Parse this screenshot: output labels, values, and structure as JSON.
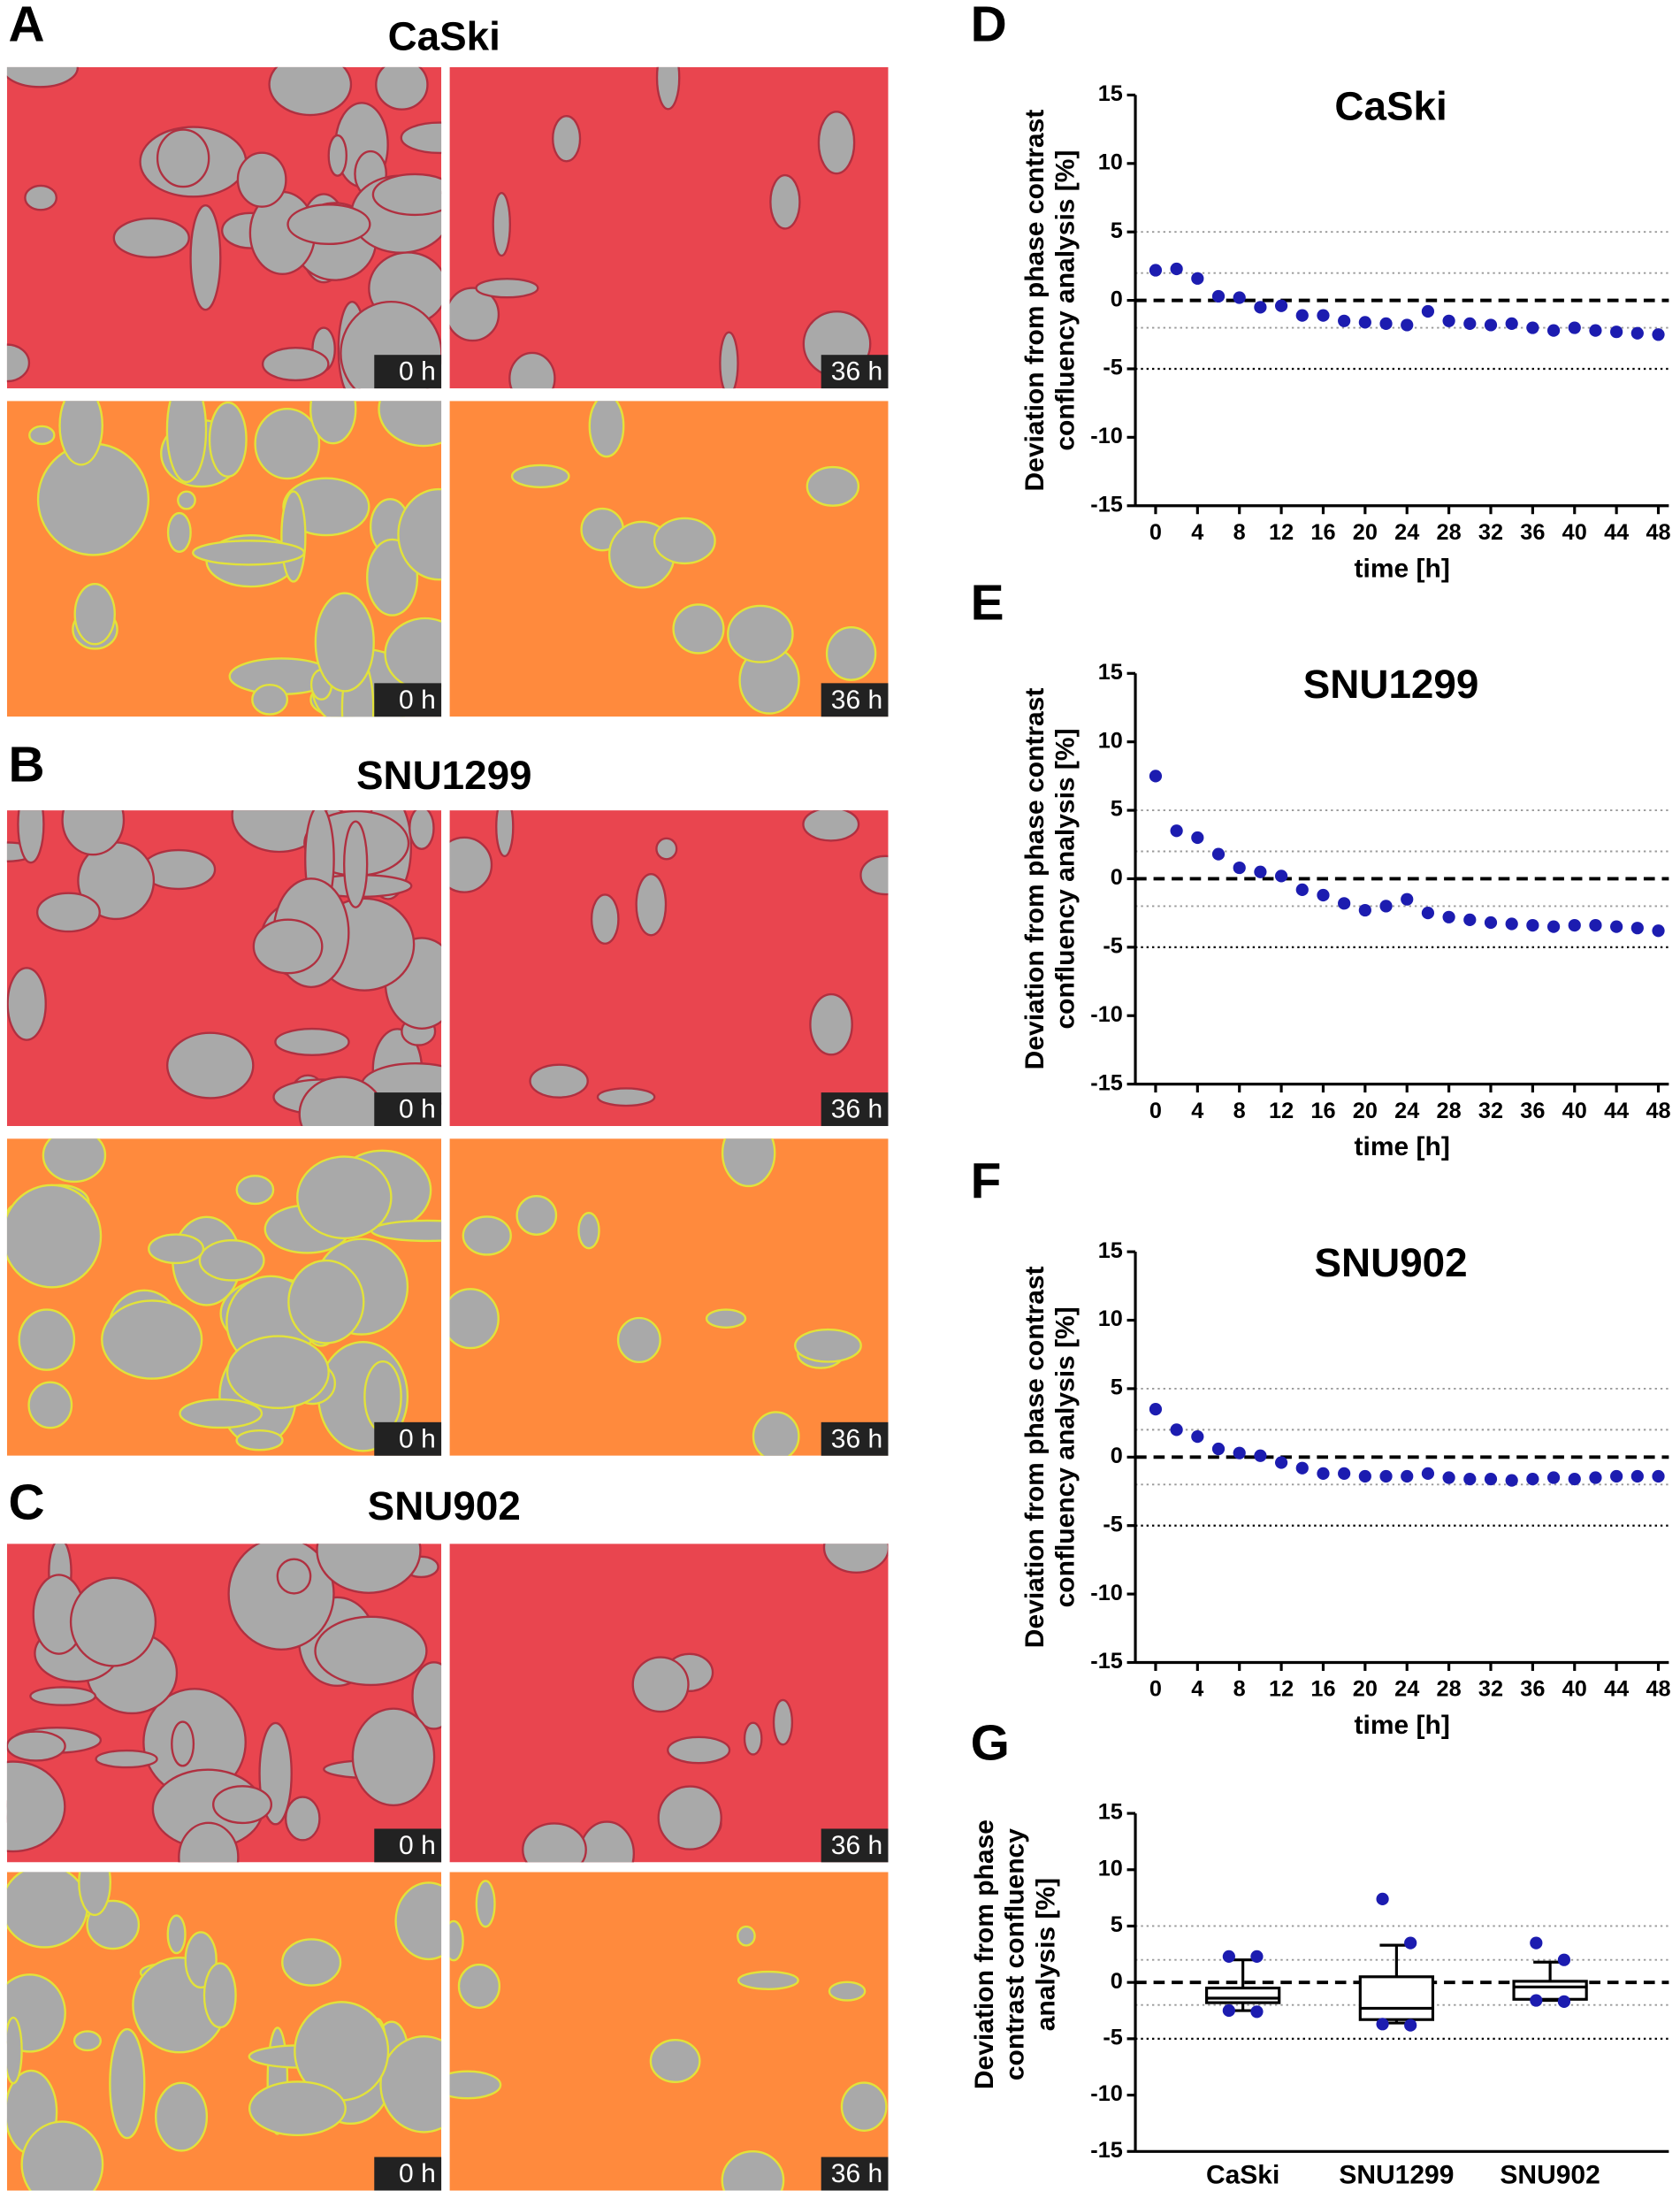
{
  "images": [
    {
      "letter": "A",
      "title": "CaSki",
      "labels": [
        "0 h",
        "36 h",
        "0 h",
        "36 h"
      ]
    },
    {
      "letter": "B",
      "title": "SNU1299",
      "labels": [
        "0 h",
        "36 h",
        "0 h",
        "36 h"
      ]
    },
    {
      "letter": "C",
      "title": "SNU902",
      "labels": [
        "0 h",
        "36 h",
        "0 h",
        "36 h"
      ]
    }
  ],
  "chart_data": [
    {
      "letter": "D",
      "type": "scatter",
      "title": "CaSki",
      "xlabel": "time [h]",
      "ylabel": [
        "Deviation from phase contrast",
        "confluency analysis [%]"
      ],
      "color": "#1c1cb0",
      "x": [
        0,
        2,
        4,
        6,
        8,
        10,
        12,
        14,
        16,
        18,
        20,
        22,
        24,
        26,
        28,
        30,
        32,
        34,
        36,
        38,
        40,
        42,
        44,
        46,
        48
      ],
      "values": [
        2.2,
        2.3,
        1.6,
        0.3,
        0.2,
        -0.5,
        -0.4,
        -1.1,
        -1.1,
        -1.5,
        -1.6,
        -1.7,
        -1.8,
        -0.8,
        -1.5,
        -1.7,
        -1.8,
        -1.7,
        -2.0,
        -2.2,
        -2.0,
        -2.2,
        -2.3,
        -2.4,
        -2.5
      ],
      "xlim": [
        -1,
        49
      ],
      "ylim": [
        -15,
        15
      ],
      "xticks": [
        0,
        4,
        8,
        12,
        16,
        20,
        24,
        28,
        32,
        36,
        40,
        44,
        48
      ],
      "yticks": [
        -15,
        -10,
        -5,
        0,
        5,
        10,
        15
      ],
      "hlines": [
        {
          "y": 5,
          "style": "gray"
        },
        {
          "y": 2,
          "style": "gray"
        },
        {
          "y": 0,
          "style": "dashed"
        },
        {
          "y": -2,
          "style": "gray"
        },
        {
          "y": -5,
          "style": "dotted"
        }
      ]
    },
    {
      "letter": "E",
      "type": "scatter",
      "title": "SNU1299",
      "xlabel": "time [h]",
      "ylabel": [
        "Deviation from phase contrast",
        "confluency analysis [%]"
      ],
      "color": "#1c1cb0",
      "x": [
        0,
        2,
        4,
        6,
        8,
        10,
        12,
        14,
        16,
        18,
        20,
        22,
        24,
        26,
        28,
        30,
        32,
        34,
        36,
        38,
        40,
        42,
        44,
        46,
        48
      ],
      "values": [
        7.5,
        3.5,
        3.0,
        1.8,
        0.8,
        0.5,
        0.2,
        -0.8,
        -1.2,
        -1.8,
        -2.3,
        -2.0,
        -1.5,
        -2.5,
        -2.8,
        -3.0,
        -3.2,
        -3.3,
        -3.4,
        -3.5,
        -3.4,
        -3.4,
        -3.5,
        -3.6,
        -3.8
      ],
      "xlim": [
        -1,
        49
      ],
      "ylim": [
        -15,
        15
      ],
      "xticks": [
        0,
        4,
        8,
        12,
        16,
        20,
        24,
        28,
        32,
        36,
        40,
        44,
        48
      ],
      "yticks": [
        -15,
        -10,
        -5,
        0,
        5,
        10,
        15
      ],
      "hlines": [
        {
          "y": 5,
          "style": "gray"
        },
        {
          "y": 2,
          "style": "gray"
        },
        {
          "y": 0,
          "style": "dashed"
        },
        {
          "y": -2,
          "style": "gray"
        },
        {
          "y": -5,
          "style": "dotted"
        }
      ]
    },
    {
      "letter": "F",
      "type": "scatter",
      "title": "SNU902",
      "xlabel": "time [h]",
      "ylabel": [
        "Deviation from phase contrast",
        "confluency analysis [%]"
      ],
      "color": "#1c1cb0",
      "x": [
        0,
        2,
        4,
        6,
        8,
        10,
        12,
        14,
        16,
        18,
        20,
        22,
        24,
        26,
        28,
        30,
        32,
        34,
        36,
        38,
        40,
        42,
        44,
        46,
        48
      ],
      "values": [
        3.5,
        2.0,
        1.5,
        0.6,
        0.3,
        0.1,
        -0.4,
        -0.8,
        -1.2,
        -1.2,
        -1.4,
        -1.4,
        -1.4,
        -1.2,
        -1.5,
        -1.6,
        -1.6,
        -1.7,
        -1.6,
        -1.5,
        -1.6,
        -1.5,
        -1.4,
        -1.4,
        -1.4
      ],
      "xlim": [
        -1,
        49
      ],
      "ylim": [
        -15,
        15
      ],
      "xticks": [
        0,
        4,
        8,
        12,
        16,
        20,
        24,
        28,
        32,
        36,
        40,
        44,
        48
      ],
      "yticks": [
        -15,
        -10,
        -5,
        0,
        5,
        10,
        15
      ],
      "hlines": [
        {
          "y": 5,
          "style": "gray"
        },
        {
          "y": 2,
          "style": "gray"
        },
        {
          "y": 0,
          "style": "dashed"
        },
        {
          "y": -2,
          "style": "gray"
        },
        {
          "y": -5,
          "style": "dotted"
        }
      ]
    },
    {
      "letter": "G",
      "type": "box",
      "ylabel": [
        "Deviation from phase",
        "contrast confluency",
        "analysis [%]"
      ],
      "color": "#1c1cb0",
      "categories": [
        "CaSki",
        "SNU1299",
        "SNU902"
      ],
      "boxes": [
        {
          "whislo": -2.5,
          "q1": -1.8,
          "med": -1.4,
          "q3": -0.5,
          "whishi": 2.0,
          "fliers": [
            2.3,
            2.3,
            -2.5,
            -2.6
          ]
        },
        {
          "whislo": -3.6,
          "q1": -3.3,
          "med": -2.3,
          "q3": 0.5,
          "whishi": 3.3,
          "fliers": [
            7.4,
            3.5,
            -3.7,
            -3.8
          ]
        },
        {
          "whislo": -1.6,
          "q1": -1.5,
          "med": -0.4,
          "q3": 0.1,
          "whishi": 1.8,
          "fliers": [
            3.5,
            2.0,
            -1.6,
            -1.7
          ]
        }
      ],
      "ylim": [
        -15,
        15
      ],
      "yticks": [
        -15,
        -10,
        -5,
        0,
        5,
        10,
        15
      ],
      "hlines": [
        {
          "y": 5,
          "style": "gray"
        },
        {
          "y": 2,
          "style": "gray"
        },
        {
          "y": 0,
          "style": "dashed"
        },
        {
          "y": -2,
          "style": "gray"
        },
        {
          "y": -5,
          "style": "dotted"
        }
      ]
    }
  ]
}
